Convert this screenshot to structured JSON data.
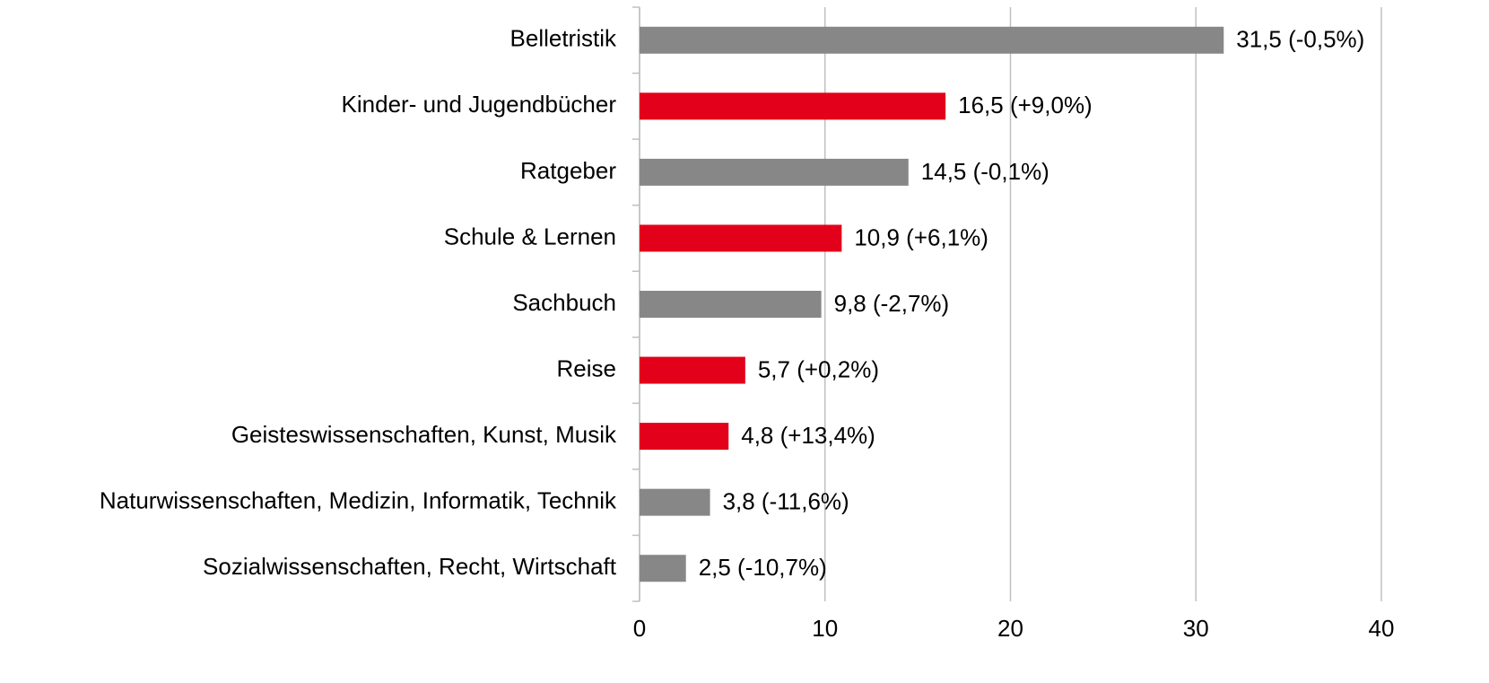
{
  "chart_data": {
    "type": "bar",
    "orientation": "horizontal",
    "categories": [
      "Belletristik",
      "Kinder- und Jugendbücher",
      "Ratgeber",
      "Schule & Lernen",
      "Sachbuch",
      "Reise",
      "Geisteswissenschaften, Kunst, Musik",
      "Naturwissenschaften, Medizin, Informatik, Technik",
      "Sozialwissenschaften, Recht, Wirtschaft"
    ],
    "values": [
      31.5,
      16.5,
      14.5,
      10.9,
      9.8,
      5.7,
      4.8,
      3.8,
      2.5
    ],
    "value_labels": [
      "31,5 (-0,5%)",
      "16,5 (+9,0%)",
      "14,5 (-0,1%)",
      "10,9 (+6,1%)",
      "9,8 (-2,7%)",
      "5,7 (+0,2%)",
      "4,8 (+13,4%)",
      "3,8 (-11,6%)",
      "2,5 (-10,7%)"
    ],
    "colors": [
      "#878787",
      "#e2001a",
      "#878787",
      "#e2001a",
      "#878787",
      "#e2001a",
      "#e2001a",
      "#878787",
      "#878787"
    ],
    "xlim": [
      0,
      40
    ],
    "xticks": [
      0,
      10,
      20,
      30,
      40
    ],
    "grid": true
  }
}
